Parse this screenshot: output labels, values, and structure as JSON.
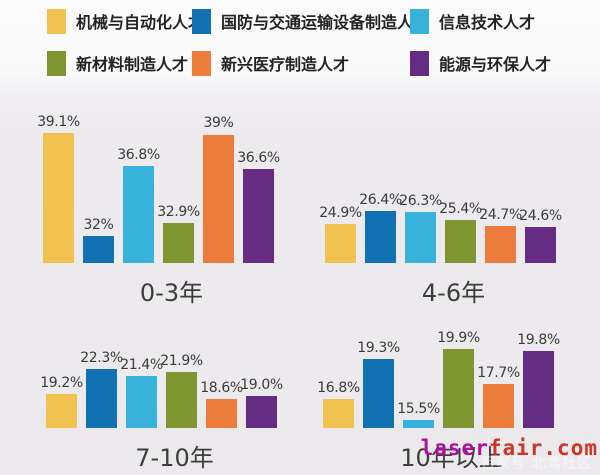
{
  "chart_data": {
    "type": "bar",
    "unit": "%",
    "legend_position": "top",
    "axes": "none",
    "note": "grouped bar chart, values shown as data labels above bars, no axis lines or gridlines",
    "series": [
      {
        "name": "机械与自动化人才",
        "color": "#F1C24F"
      },
      {
        "name": "国防与交通运输设备制造人才",
        "color": "#1171B3"
      },
      {
        "name": "信息技术人才",
        "color": "#39B2DB"
      },
      {
        "name": "新材料制造人才",
        "color": "#7F9530"
      },
      {
        "name": "新兴医疗制造人才",
        "color": "#EC7C3B"
      },
      {
        "name": "能源与环保人才",
        "color": "#652C84"
      }
    ],
    "groups": [
      {
        "label": "0-3年",
        "values": [
          39.1,
          32,
          36.8,
          32.9,
          39,
          36.6
        ],
        "value_labels": [
          "39.1%",
          "32%",
          "36.8%",
          "32.9%",
          "39%",
          "36.6%"
        ]
      },
      {
        "label": "4-6年",
        "values": [
          24.9,
          26.4,
          26.3,
          25.4,
          24.7,
          24.6
        ],
        "value_labels": [
          "24.9%",
          "26.4%",
          "26.3%",
          "25.4%",
          "24.7%",
          "24.6%"
        ]
      },
      {
        "label": "7-10年",
        "values": [
          19.2,
          22.3,
          21.4,
          21.9,
          18.6,
          19.0
        ],
        "value_labels": [
          "19.2%",
          "22.3%",
          "21.4%",
          "21.9%",
          "18.6%",
          "19.0%"
        ]
      },
      {
        "label": "10年以上",
        "values": [
          16.8,
          19.3,
          15.5,
          19.9,
          17.7,
          19.8
        ],
        "value_labels": [
          "16.8%",
          "19.3%",
          "15.5%",
          "19.9%",
          "17.7%",
          "19.8%"
        ]
      }
    ]
  },
  "watermark": {
    "text_primary": "laser",
    "text_secondary": "fair.com",
    "color_primary": "#AC10A0",
    "color_secondary": "#CE3528",
    "faint_text": "百家号 北鸢社区"
  }
}
